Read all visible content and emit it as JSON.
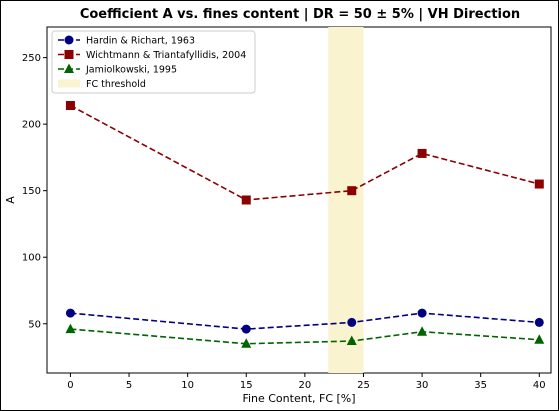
{
  "chart_data": {
    "type": "line",
    "title": "Coefficient A vs. fines content | DR = 50 ± 5% | VH Direction",
    "xlabel": "Fine Content, FC [%]",
    "ylabel": "A",
    "xlim": [
      -2,
      41
    ],
    "ylim": [
      13,
      273
    ],
    "xticks": [
      0,
      5,
      10,
      15,
      20,
      25,
      30,
      35,
      40
    ],
    "yticks": [
      50,
      100,
      150,
      200,
      250
    ],
    "grid": false,
    "legend_position": "top-left",
    "threshold": {
      "name": "FC threshold",
      "x_from": 22,
      "x_to": 25,
      "color": "#faf3d0"
    },
    "series": [
      {
        "name": "Hardin & Richart, 1963",
        "color": "#000080",
        "marker": "circle",
        "x": [
          0,
          15,
          24,
          30,
          40
        ],
        "values": [
          58,
          46,
          51,
          58,
          51
        ]
      },
      {
        "name": "Wichtmann & Triantafyllidis, 2004",
        "color": "#8b0000",
        "marker": "square",
        "x": [
          0,
          15,
          24,
          30,
          40
        ],
        "values": [
          214,
          143,
          150,
          178,
          155
        ]
      },
      {
        "name": "Jamiolkowski, 1995",
        "color": "#006400",
        "marker": "triangle",
        "x": [
          0,
          15,
          24,
          30,
          40
        ],
        "values": [
          46,
          35,
          37,
          44,
          38
        ]
      }
    ]
  }
}
